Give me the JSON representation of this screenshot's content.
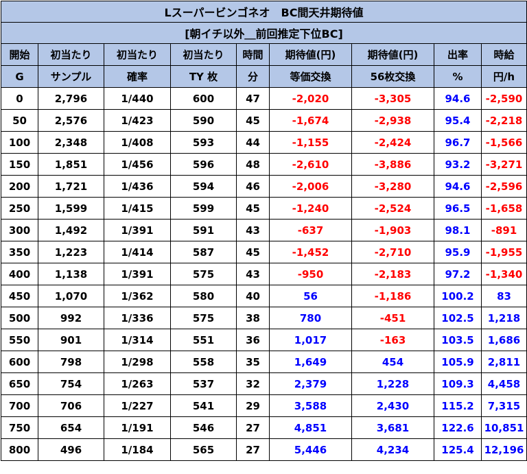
{
  "title": "Lスーパービンゴネオ　BC間天井期待値",
  "subtitle": "[朝イチ以外＿前回推定下位BC]",
  "headers_top": [
    "開始",
    "初当たり",
    "初当たり",
    "初当たり",
    "時間",
    "期待値(円)",
    "期待値(円)",
    "出率",
    "時給"
  ],
  "headers_bottom": [
    "G",
    "サンプル",
    "確率",
    "TY 枚",
    "分",
    "等価交換",
    "56枚交換",
    "%",
    "円/h"
  ],
  "colors": {
    "header_bg": "#b4c7e7",
    "negative": "#ff0000",
    "positive": "#0000ff",
    "border": "#000000"
  },
  "rows": [
    [
      "0",
      "2,796",
      "1/440",
      "600",
      "47",
      "-2,020",
      "-3,305",
      "94.6",
      "-2,590"
    ],
    [
      "50",
      "2,576",
      "1/423",
      "590",
      "45",
      "-1,674",
      "-2,938",
      "95.4",
      "-2,218"
    ],
    [
      "100",
      "2,348",
      "1/408",
      "593",
      "44",
      "-1,155",
      "-2,424",
      "96.7",
      "-1,566"
    ],
    [
      "150",
      "1,851",
      "1/456",
      "596",
      "48",
      "-2,610",
      "-3,886",
      "93.2",
      "-3,271"
    ],
    [
      "200",
      "1,721",
      "1/436",
      "594",
      "46",
      "-2,006",
      "-3,280",
      "94.6",
      "-2,596"
    ],
    [
      "250",
      "1,599",
      "1/415",
      "599",
      "45",
      "-1,240",
      "-2,524",
      "96.5",
      "-1,658"
    ],
    [
      "300",
      "1,492",
      "1/391",
      "591",
      "43",
      "-637",
      "-1,903",
      "98.1",
      "-891"
    ],
    [
      "350",
      "1,223",
      "1/414",
      "587",
      "45",
      "-1,452",
      "-2,710",
      "95.9",
      "-1,955"
    ],
    [
      "400",
      "1,138",
      "1/391",
      "575",
      "43",
      "-950",
      "-2,183",
      "97.2",
      "-1,340"
    ],
    [
      "450",
      "1,070",
      "1/362",
      "580",
      "40",
      "56",
      "-1,186",
      "100.2",
      "83"
    ],
    [
      "500",
      "992",
      "1/336",
      "575",
      "38",
      "780",
      "-451",
      "102.5",
      "1,218"
    ],
    [
      "550",
      "901",
      "1/314",
      "551",
      "36",
      "1,017",
      "-163",
      "103.5",
      "1,686"
    ],
    [
      "600",
      "798",
      "1/298",
      "558",
      "35",
      "1,649",
      "454",
      "105.9",
      "2,811"
    ],
    [
      "650",
      "754",
      "1/263",
      "537",
      "32",
      "2,379",
      "1,228",
      "109.3",
      "4,458"
    ],
    [
      "700",
      "706",
      "1/227",
      "541",
      "29",
      "3,588",
      "2,430",
      "115.2",
      "7,315"
    ],
    [
      "750",
      "654",
      "1/191",
      "546",
      "27",
      "4,851",
      "3,681",
      "122.6",
      "10,851"
    ],
    [
      "800",
      "496",
      "1/184",
      "565",
      "27",
      "5,446",
      "4,234",
      "125.4",
      "12,196"
    ]
  ]
}
